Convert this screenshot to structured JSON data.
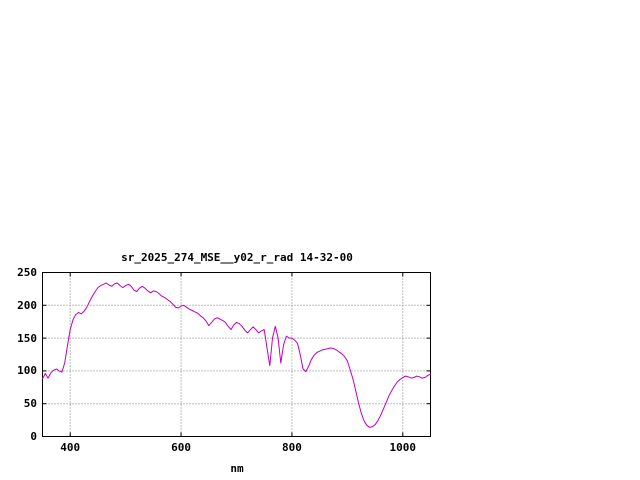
{
  "chart_data": {
    "type": "line",
    "title": "sr_2025_274_MSE__y02_r_rad 14-32-00",
    "xlabel": "nm",
    "ylabel": "",
    "xlim": [
      350,
      1050
    ],
    "ylim": [
      0,
      250
    ],
    "x_ticks": [
      400,
      600,
      800,
      1000
    ],
    "y_ticks": [
      0,
      50,
      100,
      150,
      200,
      250
    ],
    "grid": true,
    "legend": "none",
    "line_color": "#c000c0",
    "background": "#ffffff",
    "series": [
      {
        "name": "sr_2025_274_MSE__y02_r_rad",
        "x": [
          350,
          355,
          360,
          365,
          370,
          375,
          380,
          385,
          390,
          395,
          400,
          405,
          410,
          415,
          420,
          425,
          430,
          435,
          440,
          445,
          450,
          455,
          460,
          465,
          470,
          475,
          480,
          485,
          490,
          495,
          500,
          505,
          510,
          515,
          520,
          525,
          530,
          535,
          540,
          545,
          550,
          555,
          560,
          565,
          570,
          575,
          580,
          585,
          590,
          595,
          600,
          605,
          610,
          615,
          620,
          625,
          630,
          635,
          640,
          645,
          650,
          655,
          660,
          665,
          670,
          675,
          680,
          685,
          690,
          695,
          700,
          705,
          710,
          715,
          720,
          725,
          730,
          735,
          740,
          745,
          750,
          755,
          760,
          765,
          770,
          775,
          780,
          785,
          790,
          795,
          800,
          805,
          810,
          815,
          820,
          825,
          830,
          835,
          840,
          845,
          850,
          855,
          860,
          865,
          870,
          875,
          880,
          885,
          890,
          895,
          900,
          905,
          910,
          915,
          920,
          925,
          930,
          935,
          940,
          945,
          950,
          955,
          960,
          965,
          970,
          975,
          980,
          985,
          990,
          995,
          1000,
          1005,
          1010,
          1015,
          1020,
          1025,
          1030,
          1035,
          1040,
          1045,
          1050
        ],
        "y": [
          88,
          96,
          89,
          97,
          101,
          103,
          100,
          98,
          112,
          138,
          163,
          178,
          186,
          189,
          187,
          191,
          197,
          206,
          214,
          221,
          227,
          230,
          232,
          234,
          231,
          229,
          233,
          234,
          230,
          227,
          230,
          232,
          229,
          223,
          221,
          226,
          229,
          226,
          222,
          219,
          222,
          221,
          218,
          214,
          212,
          209,
          206,
          202,
          197,
          196,
          199,
          200,
          197,
          194,
          192,
          190,
          188,
          184,
          181,
          176,
          169,
          174,
          179,
          181,
          179,
          177,
          174,
          168,
          163,
          170,
          174,
          172,
          168,
          162,
          158,
          163,
          167,
          163,
          158,
          161,
          163,
          135,
          108,
          150,
          168,
          150,
          112,
          140,
          153,
          150,
          150,
          147,
          142,
          125,
          103,
          99,
          107,
          117,
          124,
          128,
          130,
          132,
          133,
          134,
          135,
          134,
          132,
          129,
          126,
          122,
          115,
          102,
          88,
          70,
          52,
          36,
          24,
          17,
          14,
          15,
          18,
          24,
          32,
          42,
          52,
          62,
          70,
          77,
          83,
          87,
          90,
          92,
          91,
          89,
          90,
          92,
          91,
          89,
          90,
          93,
          95
        ]
      }
    ]
  }
}
